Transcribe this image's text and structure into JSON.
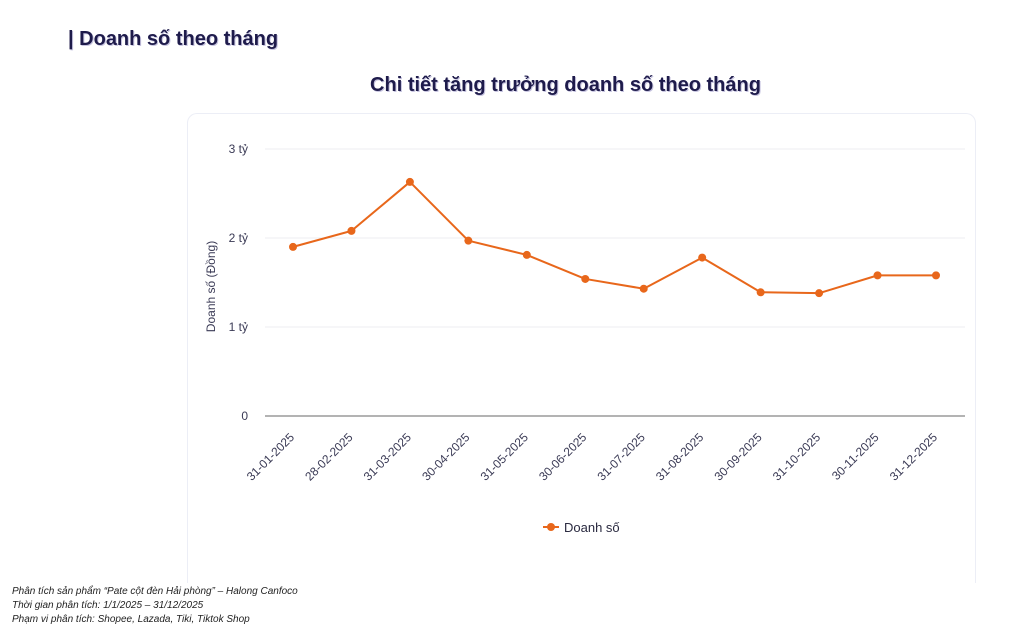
{
  "header": {
    "section_title": "| Doanh số theo tháng"
  },
  "chart_data": {
    "type": "line",
    "title": "Chi tiết tăng trưởng doanh số theo tháng",
    "xlabel": "",
    "ylabel": "Doanh số (Đồng)",
    "ylim": [
      0,
      3000000000
    ],
    "yticks": [
      {
        "value": 0,
        "label": "0"
      },
      {
        "value": 1000000000,
        "label": "1 tỷ"
      },
      {
        "value": 2000000000,
        "label": "2 tỷ"
      },
      {
        "value": 3000000000,
        "label": "3 tỷ"
      }
    ],
    "categories": [
      "31-01-2025",
      "28-02-2025",
      "31-03-2025",
      "30-04-2025",
      "31-05-2025",
      "30-06-2025",
      "31-07-2025",
      "31-08-2025",
      "30-09-2025",
      "31-10-2025",
      "30-11-2025",
      "31-12-2025"
    ],
    "series": [
      {
        "name": "Doanh số",
        "color": "#e8671b",
        "values": [
          1900000000,
          2080000000,
          2630000000,
          1970000000,
          1810000000,
          1540000000,
          1430000000,
          1780000000,
          1390000000,
          1380000000,
          1580000000,
          1580000000
        ]
      }
    ],
    "grid": true,
    "legend_position": "bottom-center"
  },
  "footer": {
    "line1": "Phân tích sản phẩm “Pate cột đèn Hải phòng” – Halong Canfoco",
    "line2": "Thời gian phân tích: 1/1/2025 – 31/12/2025",
    "line3": "Phạm vi phân tích: Shopee, Lazada, Tiki, Tiktok Shop"
  }
}
